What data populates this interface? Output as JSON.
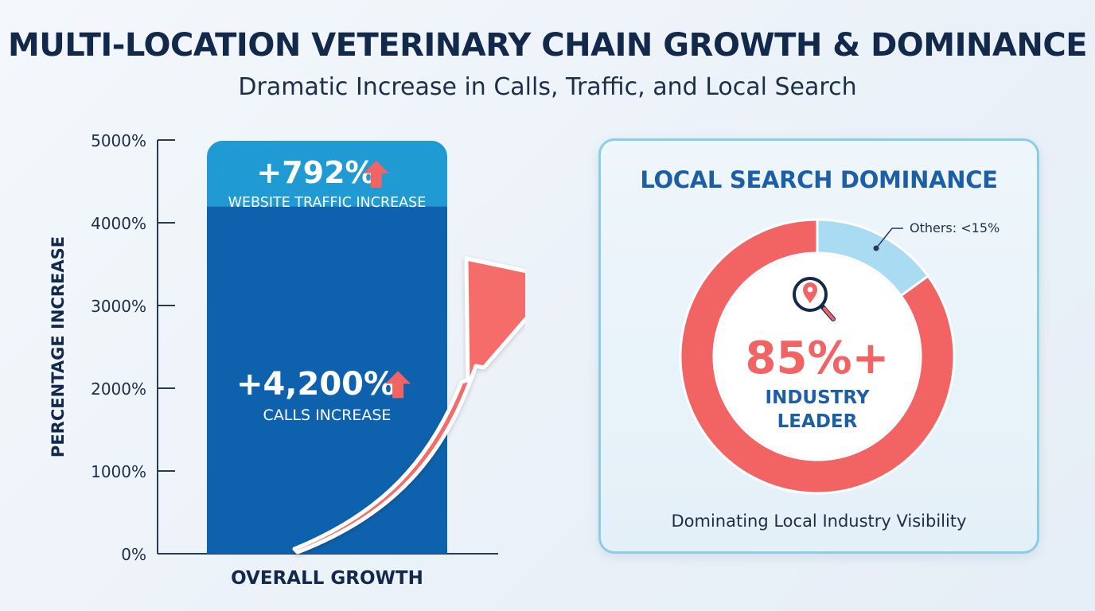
{
  "header": {
    "title": "MULTI-LOCATION VETERINARY CHAIN GROWTH & DOMINANCE",
    "subtitle": "Dramatic Increase in Calls, Traffic, and Local Search"
  },
  "colors": {
    "dark_blue": "#0e62ad",
    "light_blue": "#1f9ad3",
    "coral": "#f26464",
    "pale_blue": "#a9dcf2",
    "navy": "#13294b"
  },
  "chart_data": [
    {
      "type": "bar",
      "title": "",
      "xlabel": "OVERALL GROWTH",
      "ylabel": "PERCENTAGE INCREASE",
      "ylim": [
        0,
        5000
      ],
      "y_ticks": [
        "0%",
        "1000%",
        "2000%",
        "3000%",
        "4000%",
        "5000%"
      ],
      "y_tick_values": [
        0,
        1000,
        2000,
        3000,
        4000,
        5000
      ],
      "stacked": true,
      "categories": [
        "OVERALL GROWTH"
      ],
      "series": [
        {
          "name": "CALLS INCREASE",
          "values": [
            4200
          ],
          "label": "+4,200%",
          "color": "#0e62ad"
        },
        {
          "name": "WEBSITE TRAFFIC INCREASE",
          "values": [
            792
          ],
          "label": "+792%",
          "color": "#1f9ad3"
        }
      ],
      "annotations": [
        "upward growth arrow"
      ]
    },
    {
      "type": "pie",
      "donut": true,
      "title": "LOCAL SEARCH DOMINANCE",
      "slices": [
        {
          "label": "INDUSTRY LEADER",
          "value": 85,
          "color": "#f26464"
        },
        {
          "label": "Others: <15%",
          "value": 15,
          "color": "#a9dcf2"
        }
      ],
      "center_value": "85%+",
      "center_label_lines": [
        "INDUSTRY",
        "LEADER"
      ],
      "caption": "Dominating Local Industry Visibility",
      "center_icon": "location-search-icon"
    }
  ]
}
